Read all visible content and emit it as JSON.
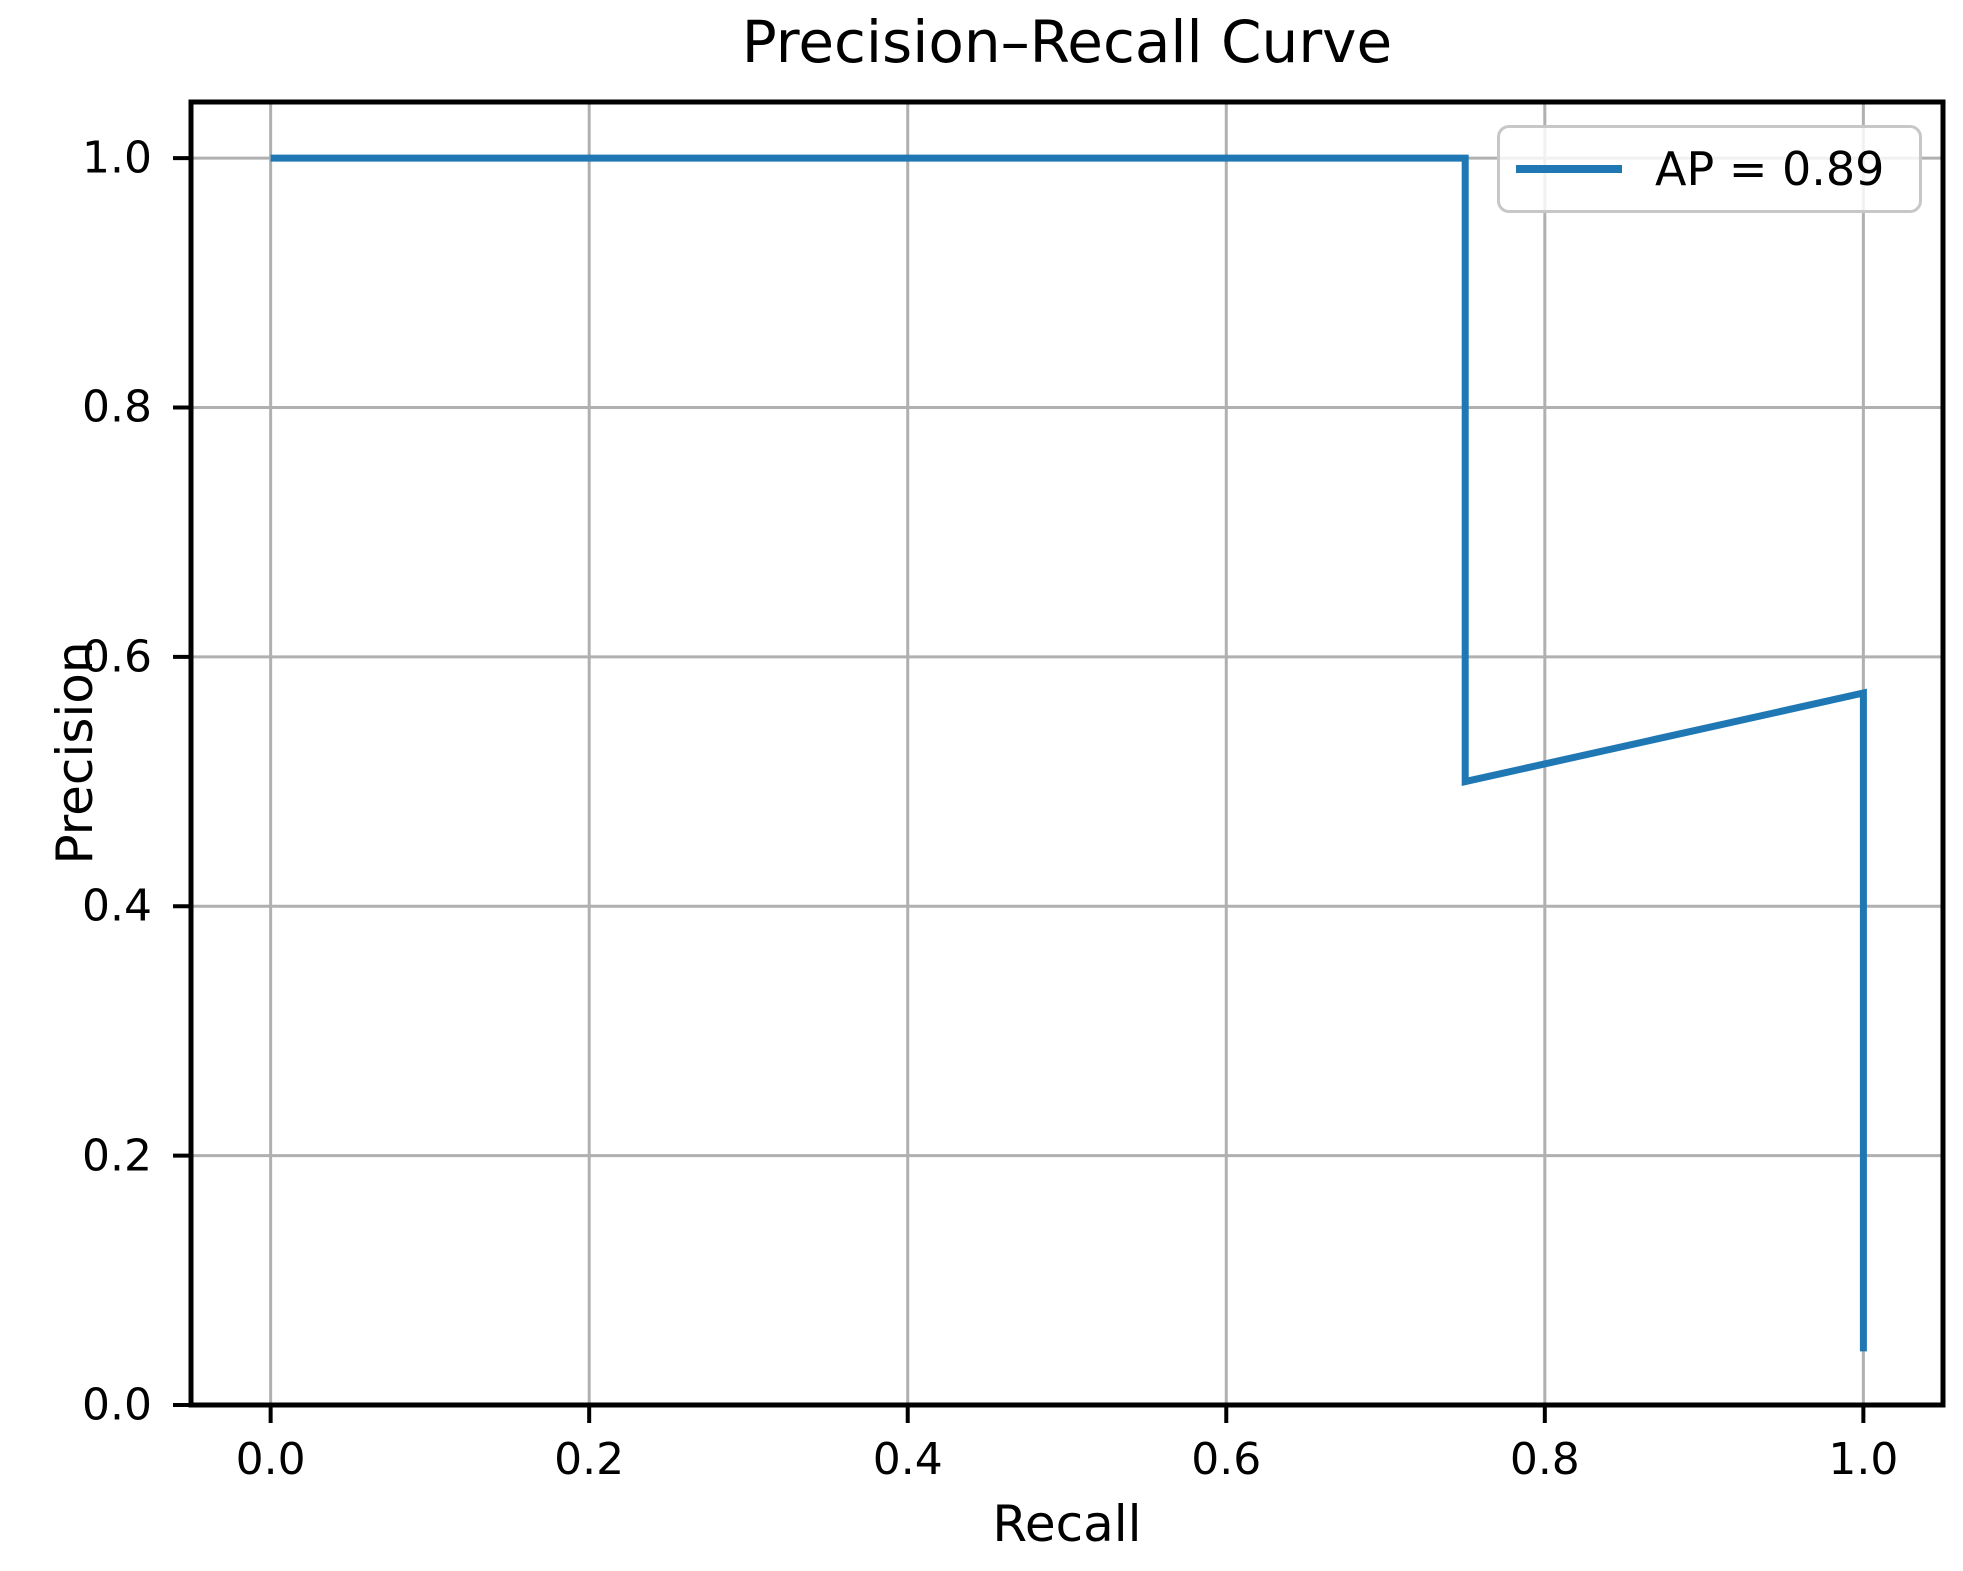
{
  "chart_data": {
    "type": "line",
    "title": "Precision–Recall Curve",
    "xlabel": "Recall",
    "ylabel": "Precision",
    "xlim": [
      -0.05,
      1.05
    ],
    "ylim": [
      0.0,
      1.045
    ],
    "xticks": [
      0.0,
      0.2,
      0.4,
      0.6,
      0.8,
      1.0
    ],
    "xtick_labels": [
      "0.0",
      "0.2",
      "0.4",
      "0.6",
      "0.8",
      "1.0"
    ],
    "yticks": [
      0.0,
      0.2,
      0.4,
      0.6,
      0.8,
      1.0
    ],
    "ytick_labels": [
      "0.0",
      "0.2",
      "0.4",
      "0.6",
      "0.8",
      "1.0"
    ],
    "grid": true,
    "grid_color": "#b0b0b0",
    "axes_color": "#000000",
    "background_color": "#ffffff",
    "legend": {
      "position": "upper right",
      "entries": [
        {
          "label": "AP = 0.89",
          "color": "#1f77b4"
        }
      ]
    },
    "series": [
      {
        "name": "AP = 0.89",
        "color": "#1f77b4",
        "points": [
          [
            0.0,
            1.0
          ],
          [
            0.75,
            1.0
          ],
          [
            0.75,
            0.5
          ],
          [
            1.0,
            0.571
          ],
          [
            1.0,
            0.043
          ]
        ]
      }
    ],
    "average_precision": 0.89
  }
}
